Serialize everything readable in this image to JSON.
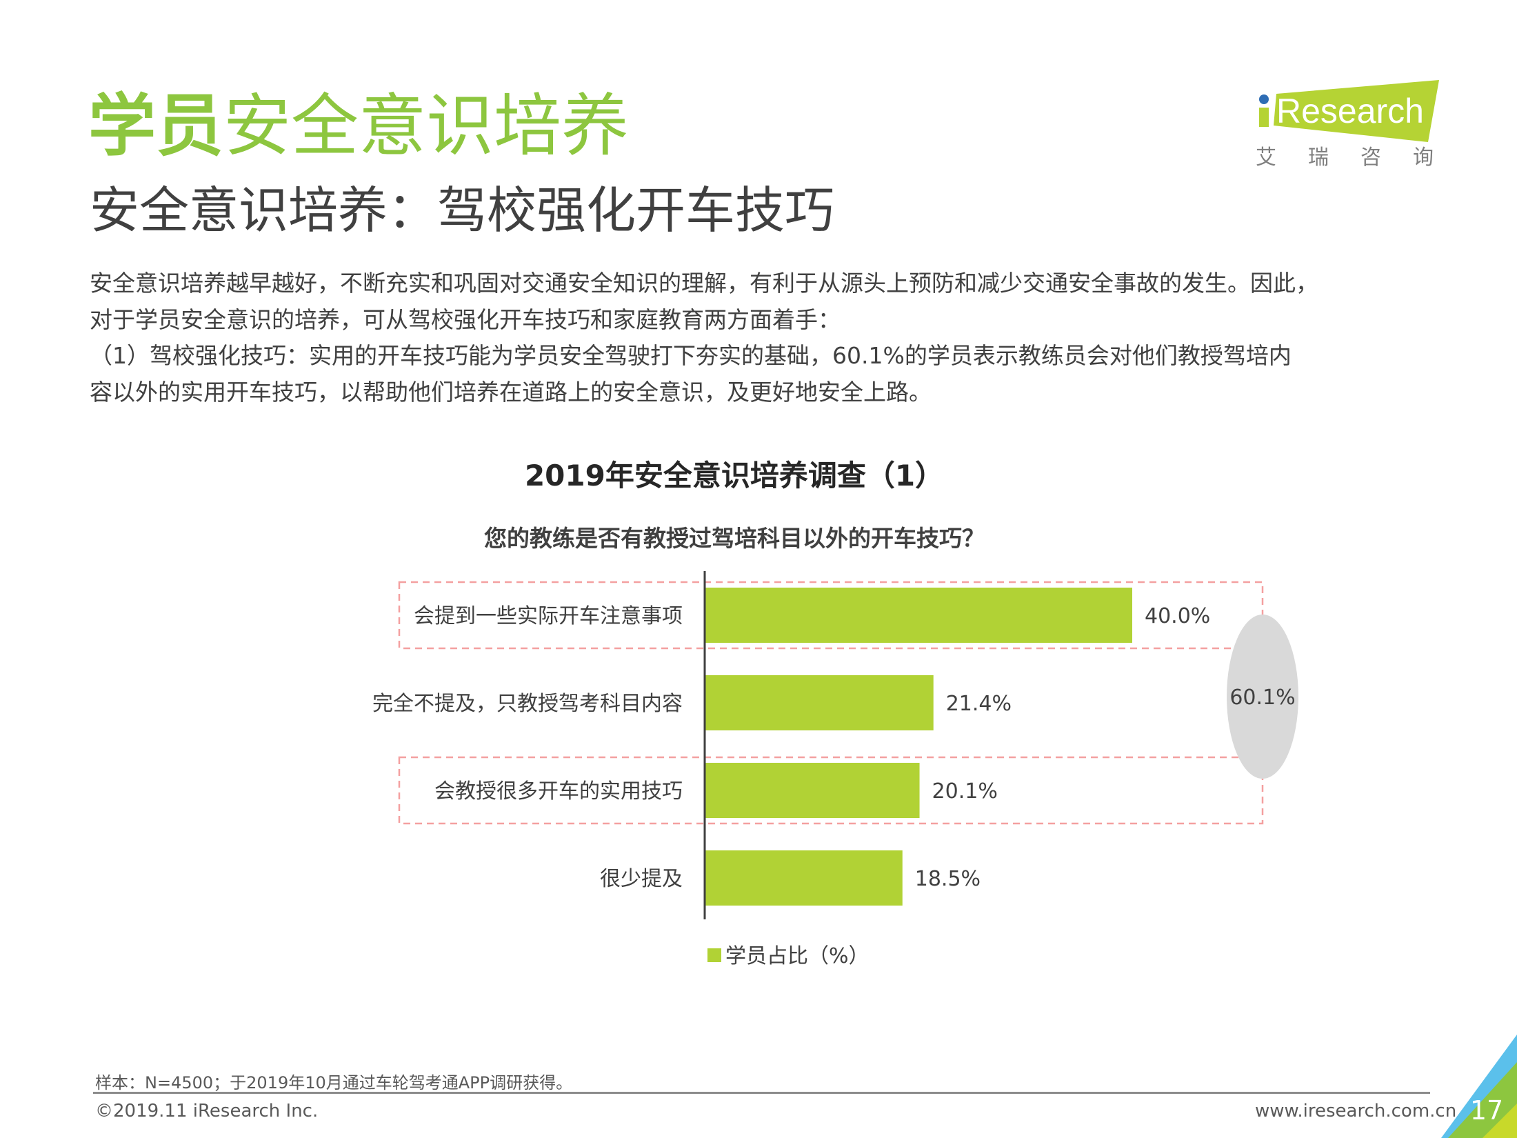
{
  "header": {
    "title_bold": "学员",
    "title_rest": "安全意识培养",
    "subtitle": "安全意识培养：驾校强化开车技巧"
  },
  "logo": {
    "text": "iResearch",
    "cn": "艾 瑞 咨 询",
    "colors": {
      "green": "#b5d334",
      "blue": "#2e6db4"
    }
  },
  "body": {
    "lines": [
      "安全意识培养越早越好，不断充实和巩固对交通安全知识的理解，有利于从源头上预防和减少交通安全事故的发生。因此，",
      "对于学员安全意识的培养，可从驾校强化开车技巧和家庭教育两方面着手：",
      "（1）驾校强化技巧：实用的开车技巧能为学员安全驾驶打下夯实的基础，60.1%的学员表示教练员会对他们教授驾培内",
      "容以外的实用开车技巧，以帮助他们培养在道路上的安全意识，及更好地安全上路。"
    ]
  },
  "chart_data": {
    "type": "bar",
    "orientation": "horizontal",
    "title": "2019年安全意识培养调查（1）",
    "subtitle": "您的教练是否有教授过驾培科目以外的开车技巧？",
    "categories": [
      "会提到一些实际开车注意事项",
      "完全不提及，只教授驾考科目内容",
      "会教授很多开车的实用技巧",
      "很少提及"
    ],
    "series": [
      {
        "name": "学员占比（%）",
        "values": [
          40.0,
          21.4,
          20.1,
          18.5
        ],
        "color": "#b1d235"
      }
    ],
    "value_labels": [
      "40.0%",
      "21.4%",
      "20.1%",
      "18.5%"
    ],
    "annotation": {
      "text": "60.1%",
      "highlighted": [
        0,
        2
      ]
    },
    "xlim": [
      0,
      40
    ],
    "legend": "bottom"
  },
  "footer": {
    "note": "样本：N=4500；于2019年10月通过车轮驾考通APP调研获得。",
    "copyright": "©2019.11 iResearch Inc.",
    "url": "www.iresearch.com.cn",
    "page": "17"
  }
}
